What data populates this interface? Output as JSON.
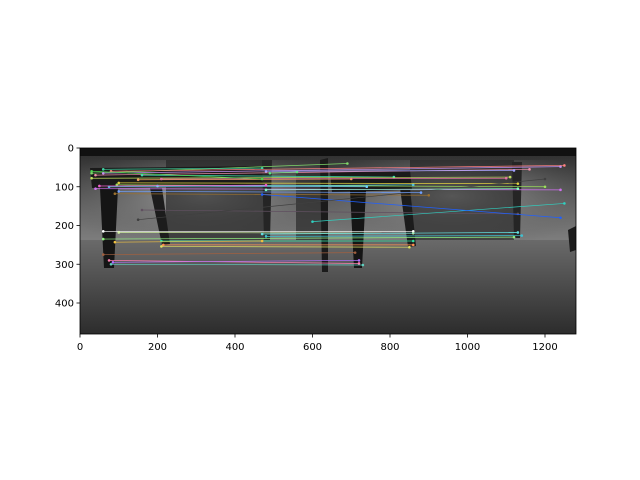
{
  "chart_data": {
    "type": "image",
    "x_ticks": [
      "0",
      "200",
      "400",
      "600",
      "800",
      "1000",
      "1200"
    ],
    "x_tick_values": [
      0,
      200,
      400,
      600,
      800,
      1000,
      1200
    ],
    "y_ticks": [
      "0",
      "100",
      "200",
      "300",
      "400"
    ],
    "y_tick_values": [
      0,
      100,
      200,
      300,
      400
    ],
    "xlim": [
      0,
      1280
    ],
    "ylim": [
      480,
      0
    ],
    "grid": false,
    "matches": [
      {
        "p1": [
          30,
          65
        ],
        "p2": [
          690,
          40
        ],
        "color": "#7fd86a"
      },
      {
        "p1": [
          60,
          55
        ],
        "p2": [
          470,
          52
        ],
        "color": "#3fd0a0"
      },
      {
        "p1": [
          60,
          65
        ],
        "p2": [
          1240,
          48
        ],
        "color": "#c090f0"
      },
      {
        "p1": [
          40,
          70
        ],
        "p2": [
          1160,
          55
        ],
        "color": "#f090a8"
      },
      {
        "p1": [
          95,
          95
        ],
        "p2": [
          1200,
          100
        ],
        "color": "#9be05a"
      },
      {
        "p1": [
          75,
          100
        ],
        "p2": [
          860,
          95
        ],
        "color": "#50c0e0"
      },
      {
        "p1": [
          40,
          105
        ],
        "p2": [
          1240,
          108
        ],
        "color": "#d070f0"
      },
      {
        "p1": [
          150,
          82
        ],
        "p2": [
          700,
          80
        ],
        "color": "#f0a060"
      },
      {
        "p1": [
          100,
          90
        ],
        "p2": [
          1130,
          92
        ],
        "color": "#e0d040"
      },
      {
        "p1": [
          160,
          70
        ],
        "p2": [
          810,
          75
        ],
        "color": "#40e0b0"
      },
      {
        "p1": [
          480,
          60
        ],
        "p2": [
          1120,
          58
        ],
        "color": "#a0a0ff"
      },
      {
        "p1": [
          490,
          65
        ],
        "p2": [
          560,
          62
        ],
        "color": "#60e080"
      },
      {
        "p1": [
          80,
          60
        ],
        "p2": [
          1250,
          45
        ],
        "color": "#ff8080"
      },
      {
        "p1": [
          200,
          98
        ],
        "p2": [
          740,
          100
        ],
        "color": "#70d0ff"
      },
      {
        "p1": [
          30,
          78
        ],
        "p2": [
          1110,
          75
        ],
        "color": "#c0e060"
      },
      {
        "p1": [
          210,
          80
        ],
        "p2": [
          1100,
          78
        ],
        "color": "#e070a0"
      },
      {
        "p1": [
          90,
          118
        ],
        "p2": [
          900,
          122
        ],
        "color": "#9a7030"
      },
      {
        "p1": [
          160,
          160
        ],
        "p2": [
          1130,
          170
        ],
        "color": "#605060"
      },
      {
        "p1": [
          600,
          190
        ],
        "p2": [
          1250,
          143
        ],
        "color": "#30d0c0"
      },
      {
        "p1": [
          470,
          120
        ],
        "p2": [
          1240,
          180
        ],
        "color": "#2060ff"
      },
      {
        "p1": [
          60,
          215
        ],
        "p2": [
          860,
          215
        ],
        "color": "#ffffff"
      },
      {
        "p1": [
          100,
          218
        ],
        "p2": [
          860,
          220
        ],
        "color": "#d0f0a0"
      },
      {
        "p1": [
          470,
          222
        ],
        "p2": [
          1130,
          218
        ],
        "color": "#60e0e0"
      },
      {
        "p1": [
          480,
          228
        ],
        "p2": [
          1140,
          226
        ],
        "color": "#40c0d0"
      },
      {
        "p1": [
          60,
          235
        ],
        "p2": [
          1120,
          230
        ],
        "color": "#90f080"
      },
      {
        "p1": [
          210,
          240
        ],
        "p2": [
          860,
          240
        ],
        "color": "#30e0a0"
      },
      {
        "p1": [
          90,
          243
        ],
        "p2": [
          470,
          240
        ],
        "color": "#f0c040"
      },
      {
        "p1": [
          215,
          250
        ],
        "p2": [
          860,
          250
        ],
        "color": "#ff9050"
      },
      {
        "p1": [
          210,
          254
        ],
        "p2": [
          850,
          256
        ],
        "color": "#e0e060"
      },
      {
        "p1": [
          75,
          290
        ],
        "p2": [
          720,
          298
        ],
        "color": "#ff80b0"
      },
      {
        "p1": [
          80,
          300
        ],
        "p2": [
          730,
          302
        ],
        "color": "#60d0c0"
      },
      {
        "p1": [
          85,
          295
        ],
        "p2": [
          720,
          290
        ],
        "color": "#b070ff"
      },
      {
        "p1": [
          60,
          275
        ],
        "p2": [
          710,
          270
        ],
        "color": "#a06040"
      },
      {
        "p1": [
          30,
          60
        ],
        "p2": [
          470,
          80
        ],
        "color": "#50d050"
      },
      {
        "p1": [
          150,
          185
        ],
        "p2": [
          1200,
          80
        ],
        "color": "#404040"
      },
      {
        "p1": [
          100,
          112
        ],
        "p2": [
          880,
          115
        ],
        "color": "#70a0ff"
      },
      {
        "p1": [
          50,
          98
        ],
        "p2": [
          480,
          96
        ],
        "color": "#f060d0"
      },
      {
        "p1": [
          480,
          108
        ],
        "p2": [
          1130,
          105
        ],
        "color": "#80ffc0"
      }
    ]
  }
}
